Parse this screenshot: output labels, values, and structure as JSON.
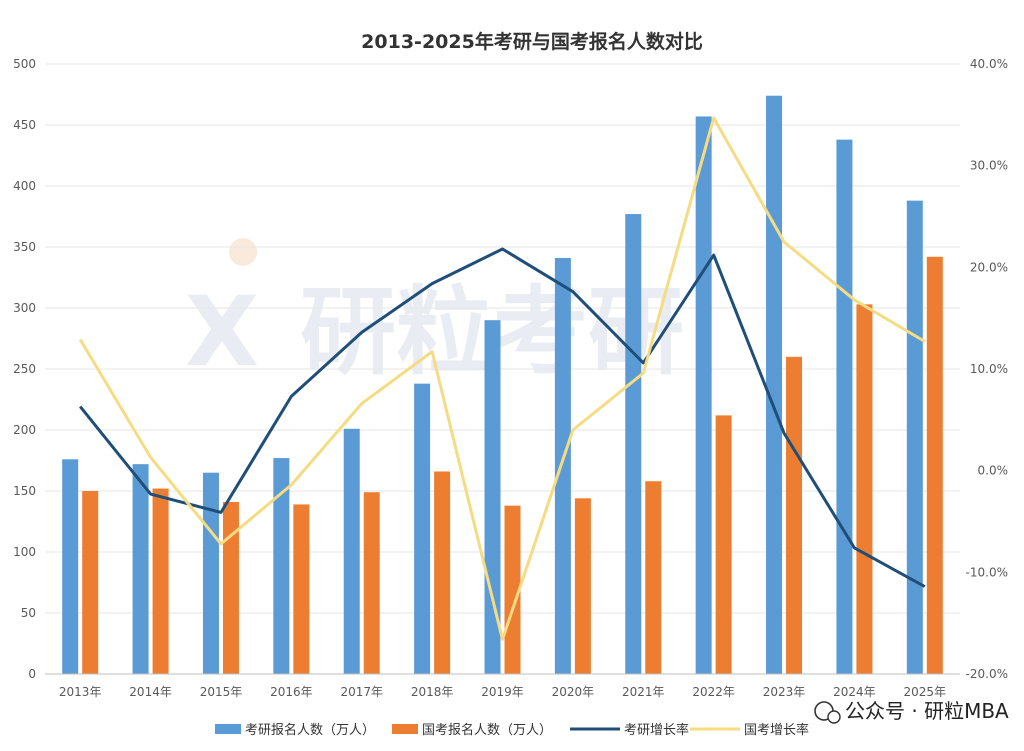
{
  "chart_data": {
    "type": "bar",
    "title": "2013-2025年考研与国考报名人数对比",
    "categories": [
      "2013年",
      "2014年",
      "2015年",
      "2016年",
      "2017年",
      "2018年",
      "2019年",
      "2020年",
      "2021年",
      "2022年",
      "2023年",
      "2024年",
      "2025年"
    ],
    "series": [
      {
        "name": "考研报名人数（万人）",
        "type": "bar",
        "axis": "left",
        "color": "#5B9BD5",
        "values": [
          176,
          172,
          165,
          177,
          201,
          238,
          290,
          341,
          377,
          457,
          474,
          438,
          388
        ]
      },
      {
        "name": "国考报名人数（万人）",
        "type": "bar",
        "axis": "left",
        "color": "#ED7D31",
        "values": [
          150,
          152,
          141,
          139,
          149,
          166,
          138,
          144,
          158,
          212,
          260,
          303,
          342
        ]
      },
      {
        "name": "考研增长率",
        "type": "line",
        "axis": "right",
        "color": "#1F4E79",
        "values": [
          6.3,
          -2.3,
          -4.1,
          7.3,
          13.6,
          18.4,
          21.8,
          17.6,
          10.6,
          21.2,
          3.7,
          -7.6,
          -11.4
        ]
      },
      {
        "name": "国考增长率",
        "type": "line",
        "axis": "right",
        "color": "#F5DC82",
        "values": [
          12.9,
          1.3,
          -7.2,
          -1.4,
          6.6,
          11.7,
          -16.6,
          4.0,
          9.6,
          34.7,
          22.5,
          16.8,
          12.7
        ]
      }
    ],
    "y_left": {
      "min": 0,
      "max": 500,
      "step": 50,
      "ticks": [
        "0",
        "50",
        "100",
        "150",
        "200",
        "250",
        "300",
        "350",
        "400",
        "450",
        "500"
      ]
    },
    "y_right": {
      "min": -20,
      "max": 40,
      "step": 10,
      "ticks": [
        "-20.0%",
        "-10.0%",
        "0.0%",
        "10.0%",
        "20.0%",
        "30.0%",
        "40.0%"
      ]
    },
    "grid": true,
    "legend_position": "bottom"
  },
  "watermark": {
    "background_text": "研粒考研",
    "corner_text": "公众号 · 研粒MBA"
  }
}
